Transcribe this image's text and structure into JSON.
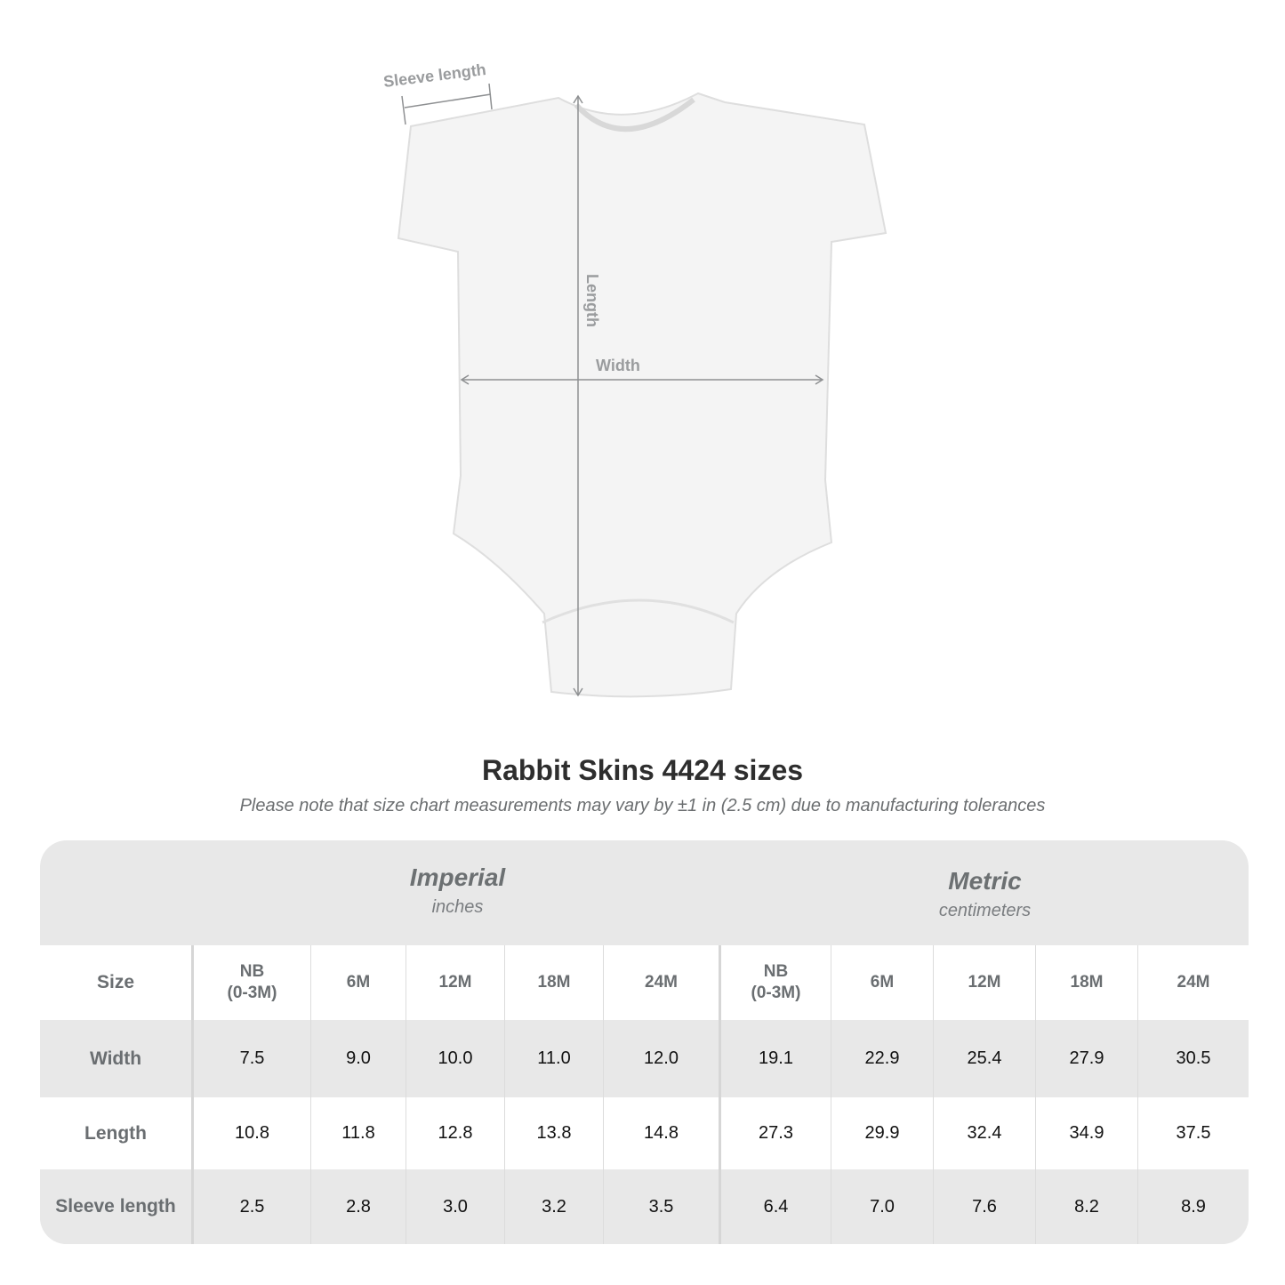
{
  "diagram": {
    "labels": {
      "sleeve": "Sleeve length",
      "length": "Length",
      "width": "Width"
    }
  },
  "title": "Rabbit Skins 4424 sizes",
  "note": "Please note that size chart measurements may vary by ±1 in (2.5 cm) due to manufacturing tolerances",
  "table": {
    "imperial": {
      "name": "Imperial",
      "unit": "inches"
    },
    "metric": {
      "name": "Metric",
      "unit": "centimeters"
    },
    "size_label": "Size",
    "sizes": [
      "NB\n(0-3M)",
      "6M",
      "12M",
      "18M",
      "24M"
    ],
    "rows": [
      {
        "label": "Width",
        "imperial": [
          "7.5",
          "9.0",
          "10.0",
          "11.0",
          "12.0"
        ],
        "metric": [
          "19.1",
          "22.9",
          "25.4",
          "27.9",
          "30.5"
        ]
      },
      {
        "label": "Length",
        "imperial": [
          "10.8",
          "11.8",
          "12.8",
          "13.8",
          "14.8"
        ],
        "metric": [
          "27.3",
          "29.9",
          "32.4",
          "34.9",
          "37.5"
        ]
      },
      {
        "label": "Sleeve length",
        "imperial": [
          "2.5",
          "2.8",
          "3.0",
          "3.2",
          "3.5"
        ],
        "metric": [
          "6.4",
          "7.0",
          "7.6",
          "8.2",
          "8.9"
        ]
      }
    ]
  }
}
